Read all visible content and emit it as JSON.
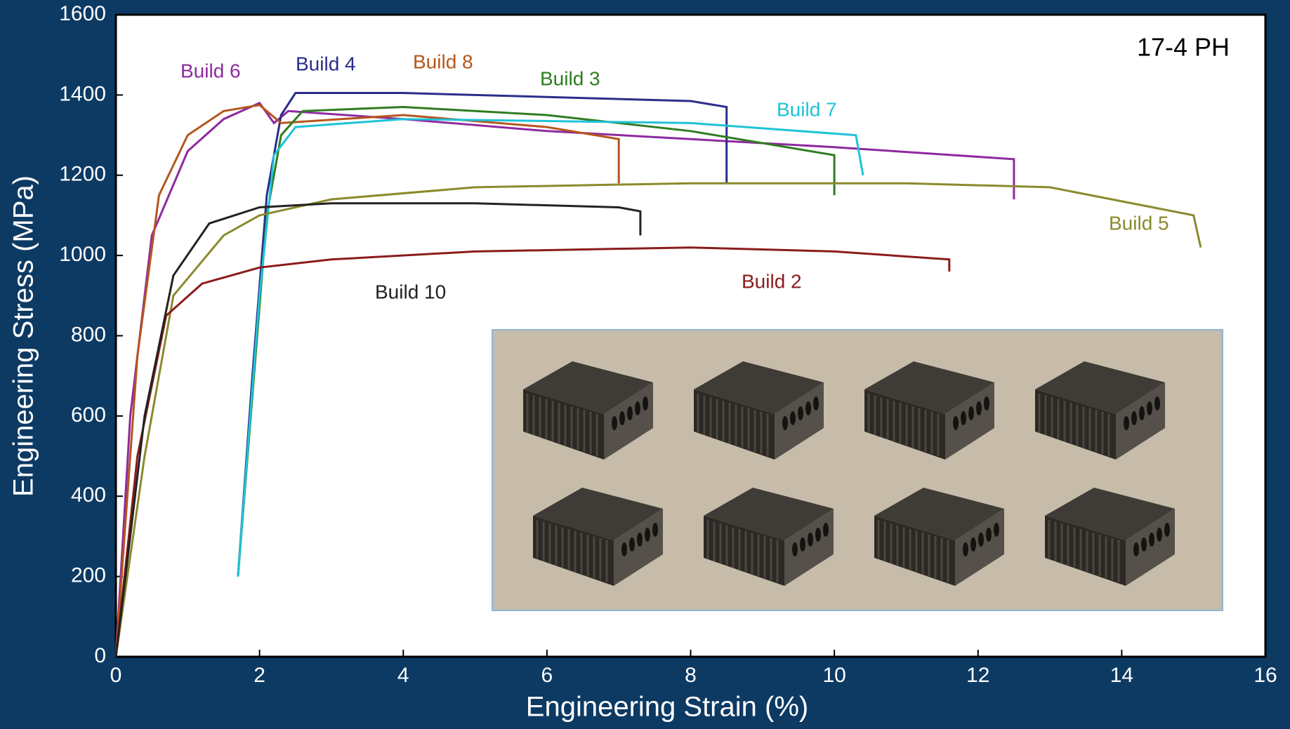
{
  "chart_data": {
    "type": "line",
    "xlabel": "Engineering Strain (%)",
    "ylabel": "Engineering Stress (MPa)",
    "annotation": "17-4 PH",
    "xlim": [
      0,
      16
    ],
    "xticks": [
      0,
      2,
      4,
      6,
      8,
      10,
      12,
      14,
      16
    ],
    "ylim": [
      0,
      1600
    ],
    "yticks": [
      0,
      200,
      400,
      600,
      800,
      1000,
      1200,
      1400,
      1600
    ],
    "grid": false,
    "series": [
      {
        "name": "Build 6",
        "color": "#8e2a9f",
        "x": [
          0,
          0.2,
          0.5,
          1,
          1.5,
          2.0,
          2.2,
          2.4,
          4,
          6,
          8,
          10,
          12.5,
          12.5
        ],
        "values": [
          0,
          600,
          1050,
          1260,
          1340,
          1380,
          1330,
          1360,
          1340,
          1310,
          1290,
          1270,
          1240,
          1140
        ]
      },
      {
        "name": "Build 4",
        "color": "#2b2d8c",
        "x": [
          1.7,
          1.9,
          2.1,
          2.3,
          2.5,
          4,
          6,
          8,
          8.5,
          8.5
        ],
        "values": [
          200,
          700,
          1150,
          1350,
          1405,
          1405,
          1395,
          1385,
          1370,
          1180
        ]
      },
      {
        "name": "Build 8",
        "color": "#b5561d",
        "x": [
          0,
          0.3,
          0.6,
          1,
          1.5,
          2,
          2.3,
          4,
          6,
          7,
          7
        ],
        "values": [
          0,
          750,
          1150,
          1300,
          1360,
          1375,
          1330,
          1350,
          1320,
          1290,
          1180
        ]
      },
      {
        "name": "Build 3",
        "color": "#2f7d20",
        "x": [
          1.7,
          1.9,
          2.1,
          2.3,
          2.6,
          4,
          6,
          8,
          10,
          10
        ],
        "values": [
          200,
          650,
          1100,
          1300,
          1360,
          1370,
          1350,
          1310,
          1250,
          1150
        ]
      },
      {
        "name": "Build 7",
        "color": "#1ec3d8",
        "x": [
          1.7,
          2.0,
          2.2,
          2.5,
          4,
          6,
          8,
          10.3,
          10.4
        ],
        "values": [
          200,
          900,
          1250,
          1320,
          1340,
          1335,
          1330,
          1300,
          1200
        ]
      },
      {
        "name": "Build 5",
        "color": "#8a8a2c",
        "x": [
          0,
          0.4,
          0.8,
          1.5,
          2,
          3,
          5,
          8,
          11,
          13,
          15,
          15.1
        ],
        "values": [
          0,
          500,
          900,
          1050,
          1100,
          1140,
          1170,
          1180,
          1180,
          1170,
          1100,
          1020
        ]
      },
      {
        "name": "Build 2",
        "color": "#8b1b1b",
        "x": [
          0,
          0.3,
          0.7,
          1.2,
          2,
          3,
          5,
          8,
          10,
          11.6,
          11.6
        ],
        "values": [
          0,
          500,
          850,
          930,
          970,
          990,
          1010,
          1020,
          1010,
          990,
          960
        ]
      },
      {
        "name": "Build 10",
        "color": "#222222",
        "x": [
          0,
          0.4,
          0.8,
          1.3,
          2,
          3,
          5,
          7,
          7.3,
          7.3
        ],
        "values": [
          0,
          600,
          950,
          1080,
          1120,
          1130,
          1130,
          1120,
          1110,
          1050
        ]
      }
    ]
  }
}
